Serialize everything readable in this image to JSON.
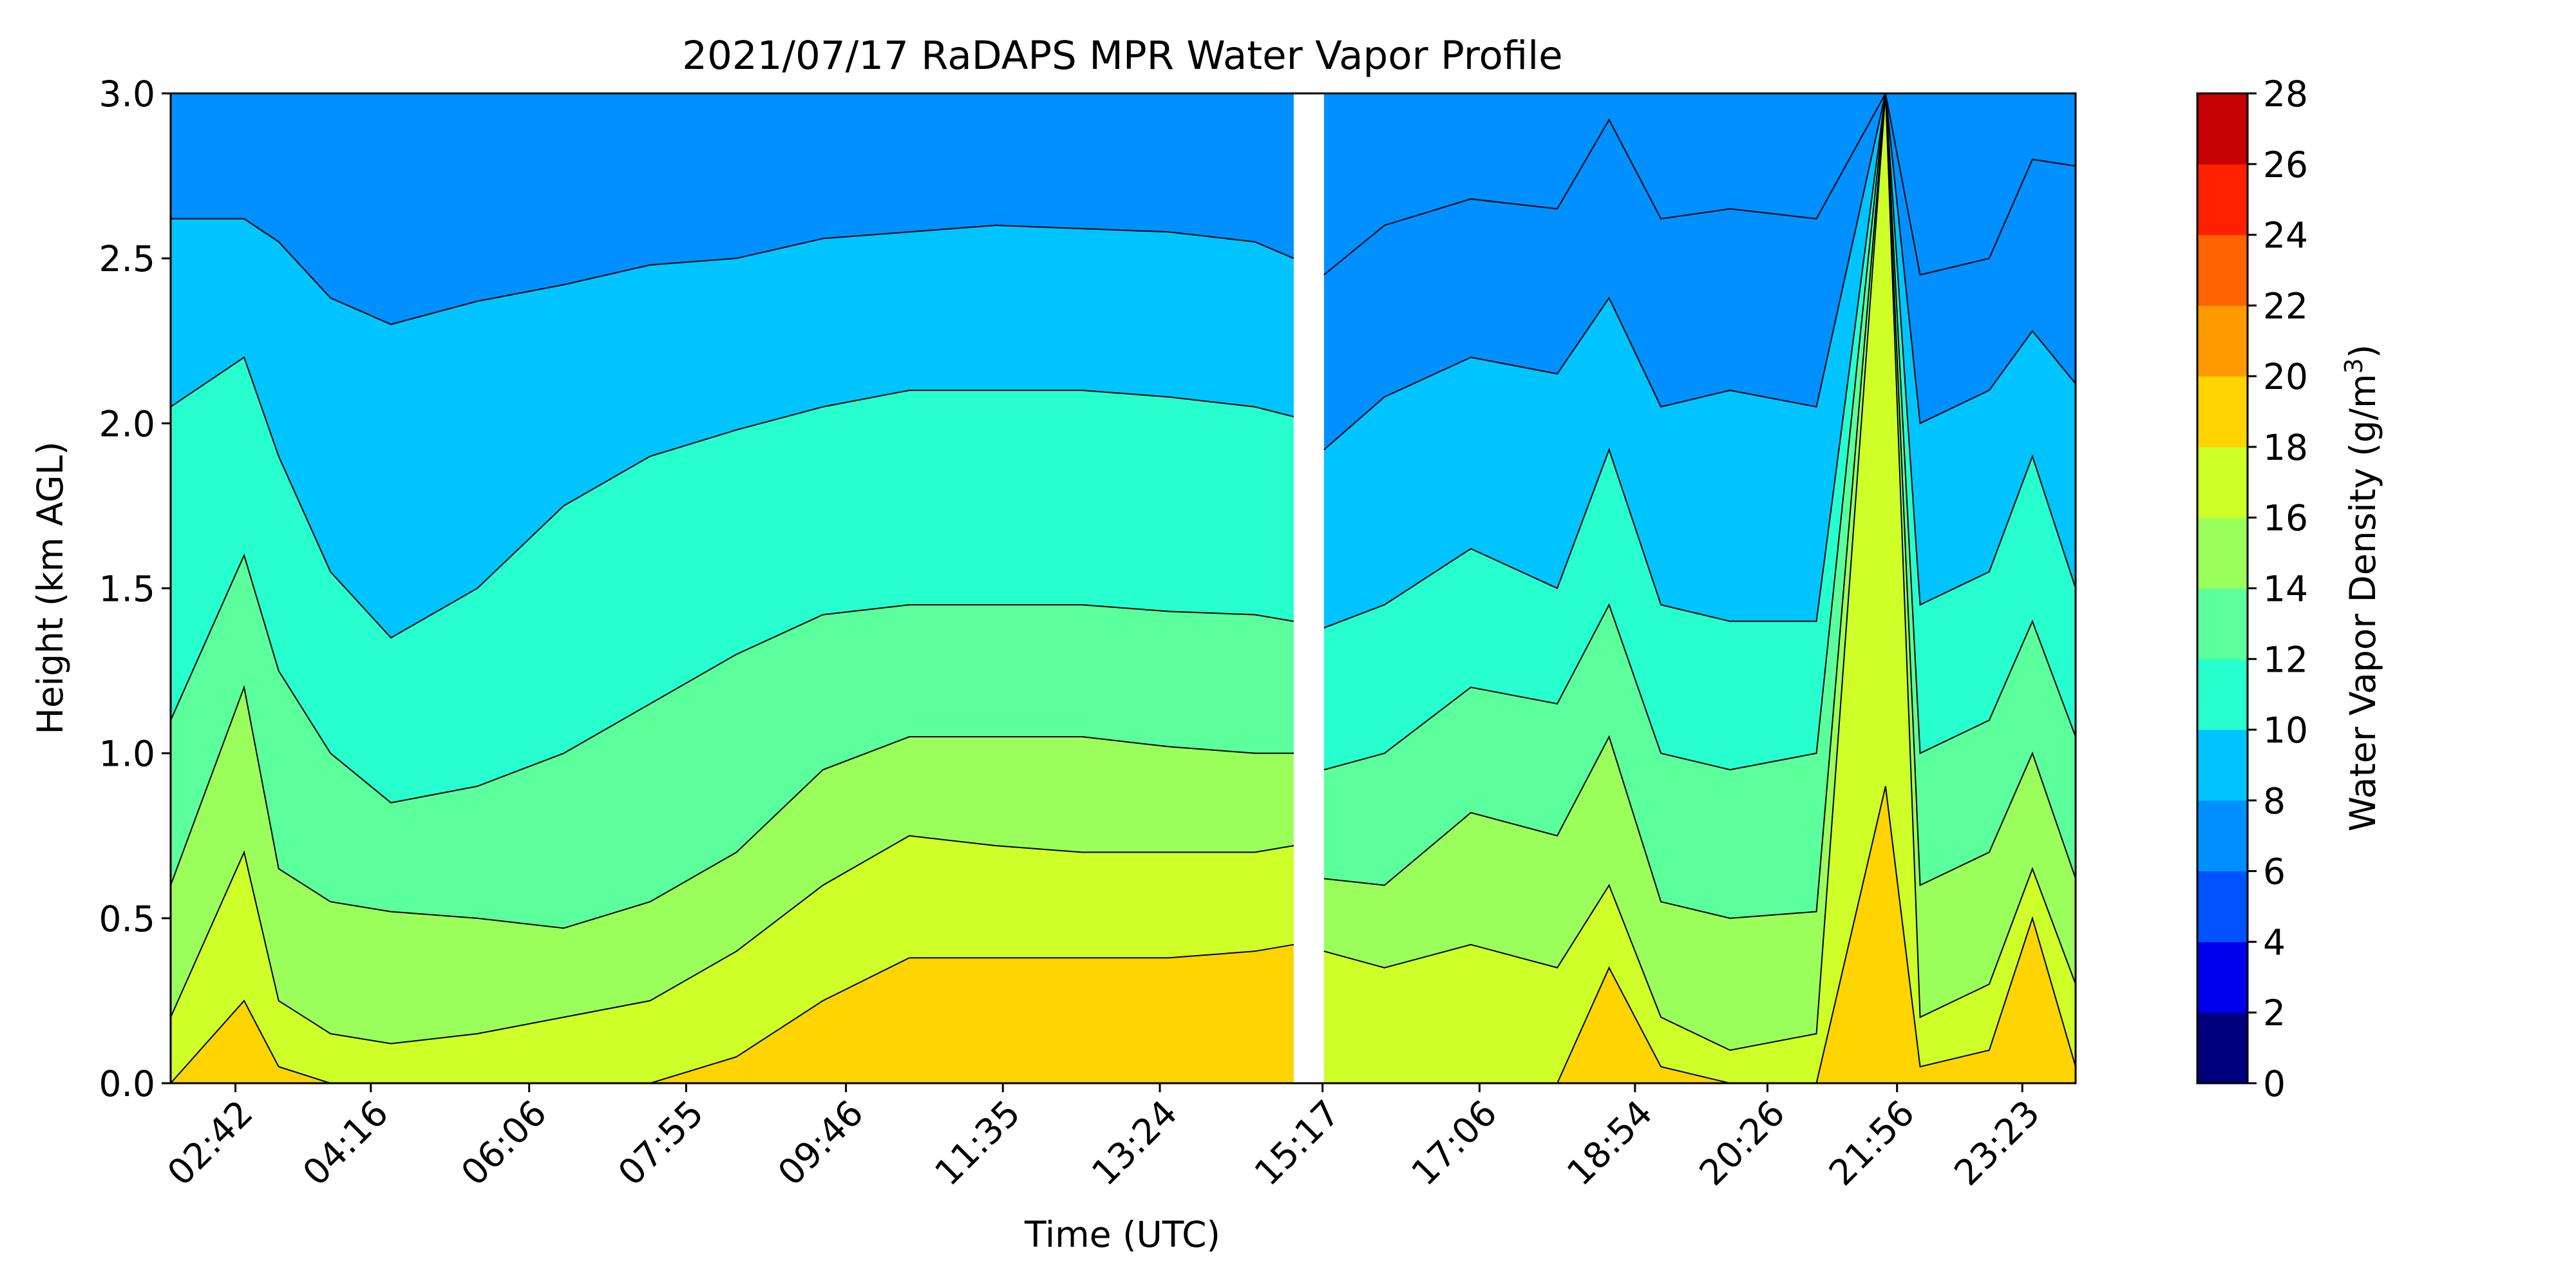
{
  "chart_data": {
    "type": "heatmap",
    "subtype": "filled-contour",
    "title": "2021/07/17 RaDAPS MPR Water Vapor Profile",
    "xlabel": "Time (UTC)",
    "ylabel": "Height (km AGL)",
    "x_tick_labels": [
      "02:42",
      "04:16",
      "06:06",
      "07:55",
      "09:46",
      "11:35",
      "13:24",
      "15:17",
      "17:06",
      "18:54",
      "20:26",
      "21:56",
      "23:23"
    ],
    "x_tick_positions_hours": [
      2.7,
      4.267,
      6.1,
      7.917,
      9.767,
      11.583,
      13.4,
      15.283,
      17.1,
      18.9,
      20.433,
      21.933,
      23.383
    ],
    "xlim_hours": [
      1.95,
      24.0
    ],
    "ylim": [
      0.0,
      3.0
    ],
    "y_ticks": [
      "0.0",
      "0.5",
      "1.0",
      "1.5",
      "2.0",
      "2.5",
      "3.0"
    ],
    "colorbar": {
      "label": "Water Vapor Density (g/m",
      "label_sup": "3",
      "label_close": ")",
      "ticks": [
        "0",
        "2",
        "4",
        "6",
        "8",
        "10",
        "12",
        "14",
        "16",
        "18",
        "20",
        "22",
        "24",
        "26",
        "28"
      ],
      "levels": [
        0,
        2,
        4,
        6,
        8,
        10,
        12,
        14,
        16,
        18,
        20,
        22,
        24,
        26,
        28
      ],
      "colors": [
        "#00007f",
        "#0000ed",
        "#0052ff",
        "#0090ff",
        "#00c4ff",
        "#28ffce",
        "#5bff9b",
        "#9bff5b",
        "#ceff28",
        "#ffd400",
        "#ff9b00",
        "#ff6200",
        "#ff2000",
        "#c40000"
      ]
    },
    "data_gap_hours": [
      15.0,
      15.3
    ],
    "contour_surfaces_km_before_gap": [
      {
        "level": 8,
        "x": [
          1.95,
          2.8,
          3.2,
          3.8,
          4.5,
          5.5,
          6.5,
          7.5,
          8.5,
          9.5,
          10.5,
          11.5,
          12.5,
          13.5,
          14.5,
          14.95
        ],
        "y": [
          2.62,
          2.62,
          2.55,
          2.38,
          2.3,
          2.37,
          2.42,
          2.48,
          2.5,
          2.56,
          2.58,
          2.6,
          2.59,
          2.58,
          2.55,
          2.5
        ]
      },
      {
        "level": 10,
        "x": [
          1.95,
          2.8,
          3.2,
          3.8,
          4.5,
          5.5,
          6.5,
          7.5,
          8.5,
          9.5,
          10.5,
          11.5,
          12.5,
          13.5,
          14.5,
          14.95
        ],
        "y": [
          2.05,
          2.2,
          1.9,
          1.55,
          1.35,
          1.5,
          1.75,
          1.9,
          1.98,
          2.05,
          2.1,
          2.1,
          2.1,
          2.08,
          2.05,
          2.02
        ]
      },
      {
        "level": 12,
        "x": [
          1.95,
          2.8,
          3.2,
          3.8,
          4.5,
          5.5,
          6.5,
          7.5,
          8.5,
          9.5,
          10.5,
          11.5,
          12.5,
          13.5,
          14.5,
          14.95
        ],
        "y": [
          1.1,
          1.6,
          1.25,
          1.0,
          0.85,
          0.9,
          1.0,
          1.15,
          1.3,
          1.42,
          1.45,
          1.45,
          1.45,
          1.43,
          1.42,
          1.4
        ]
      },
      {
        "level": 14,
        "x": [
          1.95,
          2.8,
          3.2,
          3.8,
          4.5,
          5.5,
          6.5,
          7.5,
          8.5,
          9.5,
          10.5,
          11.5,
          12.5,
          13.5,
          14.5,
          14.95
        ],
        "y": [
          0.6,
          1.2,
          0.65,
          0.55,
          0.52,
          0.5,
          0.47,
          0.55,
          0.7,
          0.95,
          1.05,
          1.05,
          1.05,
          1.02,
          1.0,
          1.0
        ]
      },
      {
        "level": 16,
        "x": [
          1.95,
          2.8,
          3.2,
          3.8,
          4.5,
          5.5,
          6.5,
          7.5,
          8.5,
          9.5,
          10.5,
          11.5,
          12.5,
          13.5,
          14.5,
          14.95
        ],
        "y": [
          0.2,
          0.7,
          0.25,
          0.15,
          0.12,
          0.15,
          0.2,
          0.25,
          0.4,
          0.6,
          0.75,
          0.72,
          0.7,
          0.7,
          0.7,
          0.72
        ]
      },
      {
        "level": 18,
        "x": [
          1.95,
          2.8,
          3.2,
          3.8,
          4.5,
          5.5,
          6.5,
          7.5,
          8.5,
          9.5,
          10.5,
          11.5,
          12.5,
          13.5,
          14.5,
          14.95
        ],
        "y": [
          0.0,
          0.25,
          0.05,
          0.0,
          0.0,
          0.0,
          0.0,
          0.0,
          0.08,
          0.25,
          0.38,
          0.38,
          0.38,
          0.38,
          0.4,
          0.42
        ]
      }
    ],
    "contour_surfaces_km_after_gap": [
      {
        "level": 6,
        "x": [
          15.3,
          16,
          17,
          18,
          18.6,
          19.2,
          20,
          21,
          21.8,
          22.2,
          23,
          23.5,
          24
        ],
        "y": [
          2.45,
          2.6,
          2.68,
          2.65,
          2.92,
          2.62,
          2.65,
          2.62,
          3.0,
          2.45,
          2.5,
          2.8,
          2.78
        ]
      },
      {
        "level": 8,
        "x": [
          15.3,
          16,
          17,
          18,
          18.6,
          19.2,
          20,
          21,
          21.8,
          22.2,
          23,
          23.5,
          24
        ],
        "y": [
          1.92,
          2.08,
          2.2,
          2.15,
          2.38,
          2.05,
          2.1,
          2.05,
          3.0,
          2.0,
          2.1,
          2.28,
          2.12
        ]
      },
      {
        "level": 10,
        "x": [
          15.3,
          16,
          17,
          18,
          18.6,
          19.2,
          20,
          21,
          21.8,
          22.2,
          23,
          23.5,
          24
        ],
        "y": [
          1.38,
          1.45,
          1.62,
          1.5,
          1.92,
          1.45,
          1.4,
          1.4,
          3.0,
          1.45,
          1.55,
          1.9,
          1.5
        ]
      },
      {
        "level": 12,
        "x": [
          15.3,
          16,
          17,
          18,
          18.6,
          19.2,
          20,
          21,
          21.8,
          22.2,
          23,
          23.5,
          24
        ],
        "y": [
          0.95,
          1.0,
          1.2,
          1.15,
          1.45,
          1.0,
          0.95,
          1.0,
          3.0,
          1.0,
          1.1,
          1.4,
          1.05
        ]
      },
      {
        "level": 14,
        "x": [
          15.3,
          16,
          17,
          18,
          18.6,
          19.2,
          20,
          21,
          21.8,
          22.2,
          23,
          23.5,
          24
        ],
        "y": [
          0.62,
          0.6,
          0.82,
          0.75,
          1.05,
          0.55,
          0.5,
          0.52,
          3.0,
          0.6,
          0.7,
          1.0,
          0.62
        ]
      },
      {
        "level": 16,
        "x": [
          15.3,
          16,
          17,
          18,
          18.6,
          19.2,
          20,
          21,
          21.8,
          22.2,
          23,
          23.5,
          24
        ],
        "y": [
          0.4,
          0.35,
          0.42,
          0.35,
          0.6,
          0.2,
          0.1,
          0.15,
          3.0,
          0.2,
          0.3,
          0.65,
          0.3
        ]
      },
      {
        "level": 18,
        "x": [
          15.3,
          16,
          17,
          18,
          18.6,
          19.2,
          20,
          21,
          21.8,
          22.2,
          23,
          23.5,
          24
        ],
        "y": [
          0.0,
          0.0,
          0.0,
          0.0,
          0.35,
          0.05,
          0.0,
          0.0,
          0.9,
          0.05,
          0.1,
          0.5,
          0.05
        ]
      }
    ],
    "grid": false,
    "legend": "colorbar-right"
  }
}
